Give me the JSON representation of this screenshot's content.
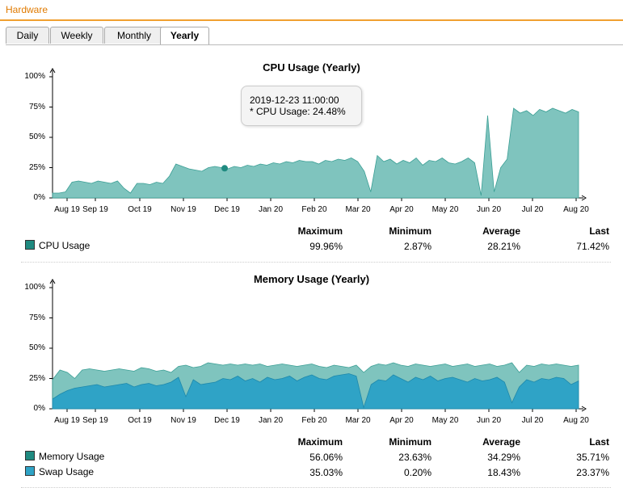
{
  "header": {
    "title": "Hardware"
  },
  "tabs": [
    {
      "label": "Daily",
      "active": false
    },
    {
      "label": "Weekly",
      "active": false
    },
    {
      "label": "Monthly",
      "active": false
    },
    {
      "label": "Yearly",
      "active": true
    }
  ],
  "colors": {
    "cpu": "#7fc4be",
    "cpu_line": "#3a9e94",
    "memory": "#7fc4be",
    "swap": "#2fa3c6",
    "accent": "#e07a00"
  },
  "stats_headers": {
    "max": "Maximum",
    "min": "Minimum",
    "avg": "Average",
    "last": "Last"
  },
  "cpu": {
    "title": "CPU Usage (Yearly)",
    "tooltip": {
      "time": "2019-12-23 11:00:00",
      "value": " * CPU Usage: 24.48%"
    },
    "legend": [
      {
        "name": "CPU Usage",
        "max": "99.96%",
        "min": "2.87%",
        "avg": "28.21%",
        "last": "71.42%",
        "color": "#1f8a80"
      }
    ]
  },
  "memory": {
    "title": "Memory Usage (Yearly)",
    "legend": [
      {
        "name": "Memory Usage",
        "max": "56.06%",
        "min": "23.63%",
        "avg": "34.29%",
        "last": "35.71%",
        "color": "#1f8a80"
      },
      {
        "name": "Swap Usage",
        "max": "35.03%",
        "min": "0.20%",
        "avg": "18.43%",
        "last": "23.37%",
        "color": "#2fa3c6"
      }
    ]
  },
  "chart_data": [
    {
      "type": "area",
      "title": "CPU Usage (Yearly)",
      "y_ticks": [
        "100%",
        "75%",
        "50%",
        "25%",
        "0%"
      ],
      "ylim": [
        0,
        100
      ],
      "x_ticks": [
        "Aug 19",
        "Sep 19",
        "Oct 19",
        "Nov 19",
        "Dec 19",
        "Jan 20",
        "Feb 20",
        "Mar 20",
        "Apr 20",
        "May 20",
        "Jun 20",
        "Jul 20",
        "Aug 20"
      ],
      "series": [
        {
          "name": "CPU Usage",
          "values": [
            4,
            4,
            5,
            13,
            14,
            13,
            12,
            14,
            13,
            12,
            14,
            8,
            4,
            12,
            12,
            11,
            13,
            12,
            18,
            28,
            26,
            24,
            23,
            22,
            25,
            26,
            25,
            24,
            26,
            25,
            27,
            26,
            28,
            27,
            29,
            28,
            30,
            29,
            31,
            30,
            30,
            28,
            31,
            30,
            32,
            31,
            33,
            30,
            22,
            5,
            35,
            30,
            32,
            28,
            31,
            29,
            33,
            27,
            31,
            30,
            33,
            29,
            28,
            30,
            33,
            29,
            2,
            68,
            5,
            25,
            32,
            74,
            70,
            72,
            68,
            73,
            71,
            74,
            72,
            70,
            73,
            71
          ]
        }
      ]
    },
    {
      "type": "area",
      "title": "Memory Usage (Yearly)",
      "y_ticks": [
        "100%",
        "75%",
        "50%",
        "25%",
        "0%"
      ],
      "ylim": [
        0,
        100
      ],
      "x_ticks": [
        "Aug 19",
        "Sep 19",
        "Oct 19",
        "Nov 19",
        "Dec 19",
        "Jan 20",
        "Feb 20",
        "Mar 20",
        "Apr 20",
        "May 20",
        "Jun 20",
        "Jul 20",
        "Aug 20"
      ],
      "series": [
        {
          "name": "Memory Usage",
          "values": [
            24,
            32,
            30,
            25,
            32,
            33,
            32,
            31,
            32,
            33,
            32,
            31,
            34,
            33,
            31,
            32,
            30,
            35,
            36,
            34,
            35,
            38,
            37,
            36,
            37,
            36,
            37,
            36,
            37,
            35,
            36,
            37,
            36,
            35,
            36,
            37,
            35,
            34,
            36,
            35,
            34,
            36,
            30,
            35,
            37,
            36,
            38,
            36,
            35,
            37,
            36,
            35,
            36,
            37,
            35,
            36,
            37,
            35,
            36,
            37,
            35,
            36,
            38,
            30,
            36,
            35,
            37,
            36,
            37,
            36,
            35,
            36
          ]
        },
        {
          "name": "Swap Usage",
          "values": [
            8,
            12,
            15,
            17,
            18,
            19,
            20,
            18,
            19,
            20,
            21,
            18,
            20,
            21,
            19,
            20,
            22,
            26,
            10,
            24,
            20,
            21,
            22,
            25,
            24,
            27,
            23,
            25,
            22,
            26,
            24,
            25,
            27,
            23,
            26,
            28,
            25,
            24,
            27,
            28,
            29,
            27,
            1,
            20,
            24,
            23,
            28,
            25,
            22,
            26,
            24,
            27,
            23,
            25,
            26,
            24,
            22,
            25,
            23,
            24,
            26,
            22,
            5,
            18,
            24,
            22,
            25,
            24,
            26,
            25,
            20,
            23
          ]
        }
      ]
    }
  ]
}
